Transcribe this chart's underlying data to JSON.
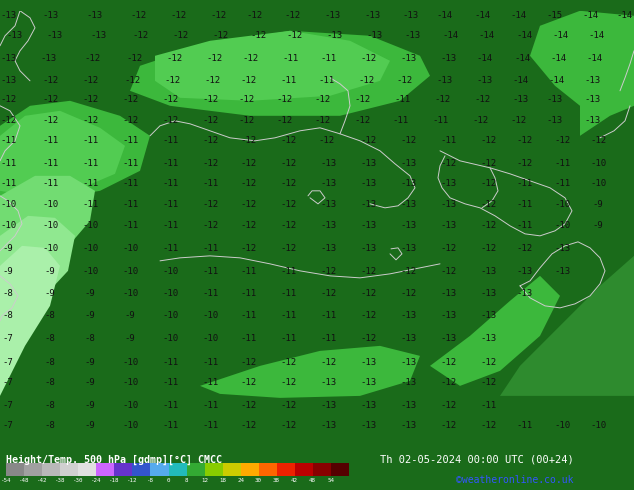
{
  "title_left": "Height/Temp. 500 hPa [gdmp][°C] CMCC",
  "title_right": "Th 02-05-2024 00:00 UTC (00+24)",
  "credit": "©weatheronline.co.uk",
  "fig_width": 6.34,
  "fig_height": 4.9,
  "dpi": 100,
  "colorbar_ticks": [
    -54,
    -48,
    -42,
    -38,
    -30,
    -24,
    -18,
    -12,
    -8,
    0,
    8,
    12,
    18,
    24,
    30,
    38,
    42,
    48,
    54
  ],
  "colorbar_colors": [
    "#888888",
    "#a0a0a0",
    "#b8b8b8",
    "#d0d0d0",
    "#e0e0e0",
    "#cc66ff",
    "#6633cc",
    "#3355cc",
    "#55aaee",
    "#22bbbb",
    "#33aa33",
    "#88cc00",
    "#cccc00",
    "#ffaa00",
    "#ff6600",
    "#ee2200",
    "#bb0000",
    "#880000",
    "#550000"
  ],
  "bg_dark": "#1a6b1a",
  "bg_medium": "#2e8b2e",
  "bg_light": "#3cb83c",
  "bg_lighter": "#5acc5a",
  "bg_lightest": "#88dd88",
  "bg_pale": "#aaeaaa",
  "top_bar_left_color": "#5588cc",
  "top_bar_right_color": "#cc88aa",
  "bottom_bg": "#000000",
  "label_color": "#111111",
  "coast_color": "#cccccc",
  "credit_color": "#3355ff"
}
